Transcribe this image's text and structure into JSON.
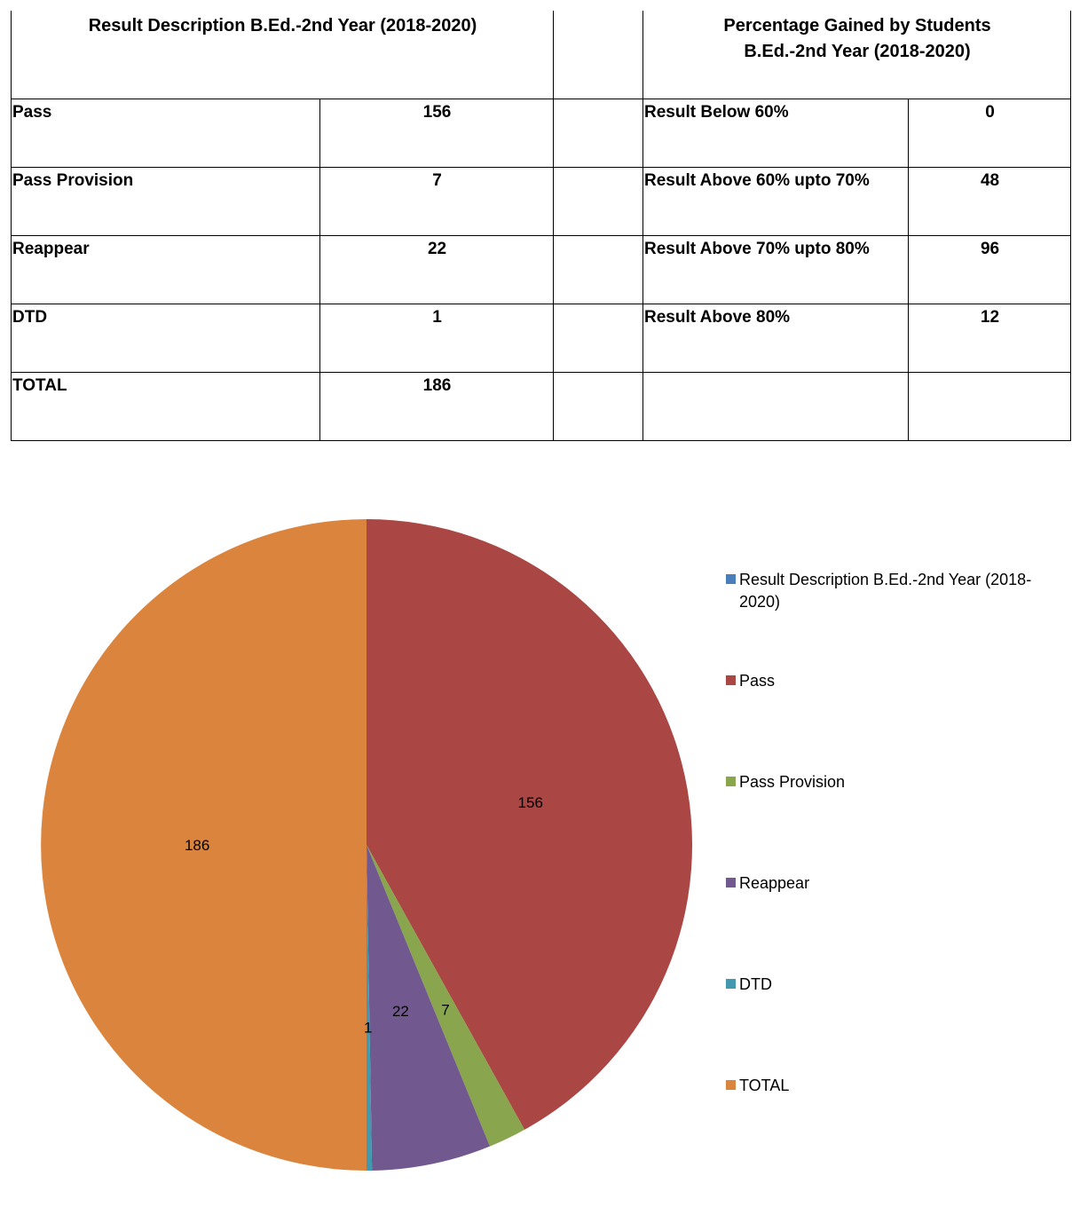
{
  "table": {
    "left_header": "Result Description B.Ed.-2nd Year (2018-2020)",
    "right_header_line1": "Percentage Gained by Students",
    "right_header_line2": "B.Ed.-2nd Year (2018-2020)",
    "left_rows": [
      {
        "label": "Pass",
        "value": "156"
      },
      {
        "label": "Pass Provision",
        "value": "7"
      },
      {
        "label": "Reappear",
        "value": "22"
      },
      {
        "label": "DTD",
        "value": "1"
      },
      {
        "label": "TOTAL",
        "value": "186"
      }
    ],
    "right_rows": [
      {
        "label": "Result Below 60%",
        "value": "0"
      },
      {
        "label": "Result Above 60% upto 70%",
        "value": "48"
      },
      {
        "label": "Result Above 70% upto 80%",
        "value": "96"
      },
      {
        "label": "Result Above 80%",
        "value": "12"
      },
      {
        "label": "",
        "value": ""
      }
    ]
  },
  "chart_data": {
    "type": "pie",
    "slices": [
      {
        "label": "Result Description B.Ed.-2nd Year (2018-2020)",
        "value": 0,
        "color": "#4a7ebb"
      },
      {
        "label": "Pass",
        "value": 156,
        "color": "#aa4643"
      },
      {
        "label": "Pass Provision",
        "value": 7,
        "color": "#89a54e"
      },
      {
        "label": "Reappear",
        "value": 22,
        "color": "#71588f"
      },
      {
        "label": "DTD",
        "value": 1,
        "color": "#4198af"
      },
      {
        "label": "TOTAL",
        "value": 186,
        "color": "#db843d"
      }
    ],
    "legend": {
      "position": "right",
      "items": [
        {
          "lines": [
            "Result Description B.Ed.-2nd Year (2018-",
            "2020)"
          ],
          "color": "#4a7ebb"
        },
        {
          "lines": [
            "Pass"
          ],
          "color": "#aa4643"
        },
        {
          "lines": [
            "Pass Provision"
          ],
          "color": "#89a54e"
        },
        {
          "lines": [
            "Reappear"
          ],
          "color": "#71588f"
        },
        {
          "lines": [
            "DTD"
          ],
          "color": "#4198af"
        },
        {
          "lines": [
            "TOTAL"
          ],
          "color": "#db843d"
        }
      ]
    },
    "data_labels": true
  }
}
